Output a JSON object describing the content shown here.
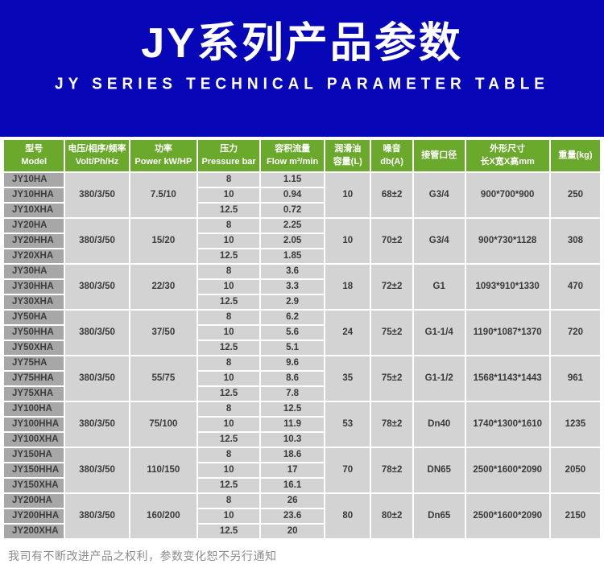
{
  "header": {
    "title": "JY系列产品参数",
    "subtitle": "JY SERIES TECHNICAL PARAMETER TABLE"
  },
  "colors": {
    "banner_blue": "#0707b8",
    "header_green": "#6aa92c",
    "model_gray": "#a7a7a7",
    "cell_gray": "#d3d3d3"
  },
  "table": {
    "columns": [
      {
        "zh": "型号",
        "en": "Model"
      },
      {
        "zh": "电压/相序/频率",
        "en": "Volt/Ph/Hz"
      },
      {
        "zh": "功率",
        "en": "Power kW/HP"
      },
      {
        "zh": "压力",
        "en": "Pressure bar"
      },
      {
        "zh": "容积流量",
        "en": "Flow m³/min"
      },
      {
        "zh": "润滑油",
        "en": "容量(L)"
      },
      {
        "zh": "噪音",
        "en": "db(A)"
      },
      {
        "zh": "接管口径",
        "en": ""
      },
      {
        "zh": "外形尺寸",
        "en": "长X宽X高mm"
      },
      {
        "zh": "重量(kg)",
        "en": ""
      }
    ],
    "groups": [
      {
        "models": [
          "JY10HA",
          "JY10HHA",
          "JY10XHA"
        ],
        "voltage": "380/3/50",
        "power": "7.5/10",
        "pressure": [
          "8",
          "10",
          "12.5"
        ],
        "flow": [
          "1.15",
          "0.94",
          "0.72"
        ],
        "oil": "10",
        "noise": "68±2",
        "pipe": "G3/4",
        "dimensions": "900*700*900",
        "weight": "250"
      },
      {
        "models": [
          "JY20HA",
          "JY20HHA",
          "JY20XHA"
        ],
        "voltage": "380/3/50",
        "power": "15/20",
        "pressure": [
          "8",
          "10",
          "12.5"
        ],
        "flow": [
          "2.25",
          "2.05",
          "1.85"
        ],
        "oil": "10",
        "noise": "70±2",
        "pipe": "G3/4",
        "dimensions": "900*730*1128",
        "weight": "308"
      },
      {
        "models": [
          "JY30HA",
          "JY30HHA",
          "JY30XHA"
        ],
        "voltage": "380/3/50",
        "power": "22/30",
        "pressure": [
          "8",
          "10",
          "12.5"
        ],
        "flow": [
          "3.6",
          "3.3",
          "2.9"
        ],
        "oil": "18",
        "noise": "72±2",
        "pipe": "G1",
        "dimensions": "1093*910*1330",
        "weight": "470"
      },
      {
        "models": [
          "JY50HA",
          "JY50HHA",
          "JY50XHA"
        ],
        "voltage": "380/3/50",
        "power": "37/50",
        "pressure": [
          "8",
          "10",
          "12.5"
        ],
        "flow": [
          "6.2",
          "5.6",
          "5.1"
        ],
        "oil": "24",
        "noise": "75±2",
        "pipe": "G1-1/4",
        "dimensions": "1190*1087*1370",
        "weight": "720"
      },
      {
        "models": [
          "JY75HA",
          "JY75HHA",
          "JY75XHA"
        ],
        "voltage": "380/3/50",
        "power": "55/75",
        "pressure": [
          "8",
          "10",
          "12.5"
        ],
        "flow": [
          "9.6",
          "8.6",
          "7.8"
        ],
        "oil": "35",
        "noise": "75±2",
        "pipe": "G1-1/2",
        "dimensions": "1568*1143*1443",
        "weight": "961"
      },
      {
        "models": [
          "JY100HA",
          "JY100HHA",
          "JY100XHA"
        ],
        "voltage": "380/3/50",
        "power": "75/100",
        "pressure": [
          "8",
          "10",
          "12.5"
        ],
        "flow": [
          "12.5",
          "11.9",
          "10.3"
        ],
        "oil": "53",
        "noise": "78±2",
        "pipe": "Dn40",
        "dimensions": "1740*1300*1610",
        "weight": "1235"
      },
      {
        "models": [
          "JY150HA",
          "JY150HHA",
          "JY150XHA"
        ],
        "voltage": "380/3/50",
        "power": "110/150",
        "pressure": [
          "8",
          "10",
          "12.5"
        ],
        "flow": [
          "18.6",
          "17",
          "16.1"
        ],
        "oil": "70",
        "noise": "78±2",
        "pipe": "DN65",
        "dimensions": "2500*1600*2090",
        "weight": "2050"
      },
      {
        "models": [
          "JY200HA",
          "JY200HHA",
          "JY200XHA"
        ],
        "voltage": "380/3/50",
        "power": "160/200",
        "pressure": [
          "8",
          "10",
          "12.5"
        ],
        "flow": [
          "26",
          "23.6",
          "20"
        ],
        "oil": "80",
        "noise": "80±2",
        "pipe": "Dn65",
        "dimensions": "2500*1600*2090",
        "weight": "2150"
      }
    ]
  },
  "footer": {
    "note": "我司有不断改进产品之权利，参数变化恕不另行通知"
  }
}
